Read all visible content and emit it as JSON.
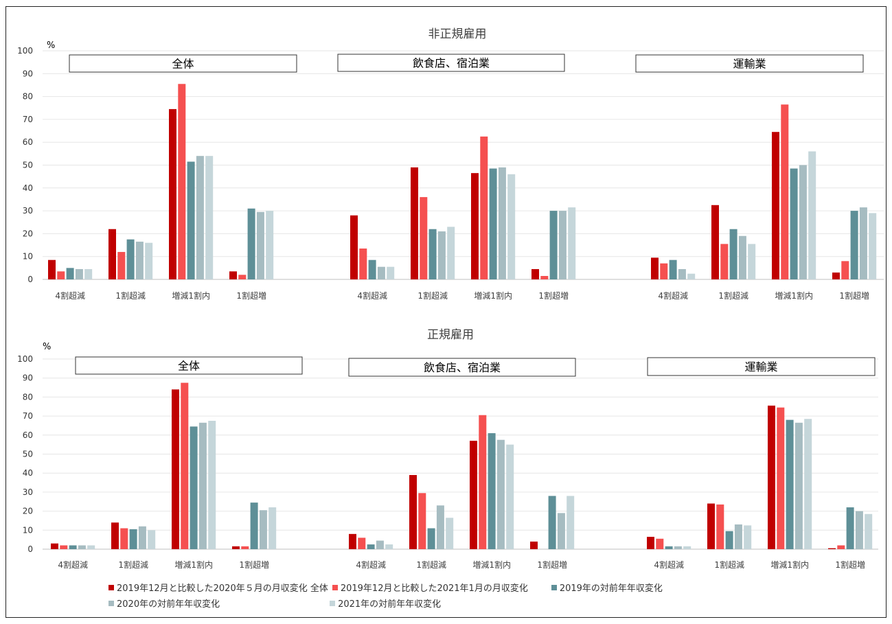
{
  "chart_data": [
    {
      "type": "bar",
      "title": "非正規雇用",
      "ylabel": "%",
      "ylim": [
        0,
        100
      ],
      "yticks": [
        0,
        10,
        20,
        30,
        40,
        50,
        60,
        70,
        80,
        90,
        100
      ],
      "categories": [
        "4割超減",
        "1割超減",
        "増減1割内",
        "1割超増"
      ],
      "groups": [
        {
          "label": "全体",
          "series_values": [
            [
              8.5,
              22,
              74.5,
              3.5
            ],
            [
              3.5,
              12,
              85.5,
              2
            ],
            [
              5,
              17.5,
              51.5,
              31
            ],
            [
              4.5,
              16.5,
              54,
              29.5
            ],
            [
              4.5,
              16,
              54,
              30
            ]
          ]
        },
        {
          "label": "飲食店、宿泊業",
          "series_values": [
            [
              28,
              49,
              46.5,
              4.5
            ],
            [
              13.5,
              36,
              62.5,
              1.5
            ],
            [
              8.5,
              22,
              48.5,
              30
            ],
            [
              5.5,
              21,
              49,
              30
            ],
            [
              5.5,
              23,
              46,
              31.5
            ]
          ]
        },
        {
          "label": "運輸業",
          "series_values": [
            [
              9.5,
              32.5,
              64.5,
              3
            ],
            [
              7,
              15.5,
              76.5,
              8
            ],
            [
              8.5,
              22,
              48.5,
              30
            ],
            [
              4.5,
              19,
              50,
              31.5
            ],
            [
              2.5,
              15.5,
              56,
              29
            ]
          ]
        }
      ]
    },
    {
      "type": "bar",
      "title": "正規雇用",
      "ylabel": "%",
      "ylim": [
        0,
        100
      ],
      "yticks": [
        0,
        10,
        20,
        30,
        40,
        50,
        60,
        70,
        80,
        90,
        100
      ],
      "categories": [
        "4割超減",
        "1割超減",
        "増減1割内",
        "1割超増"
      ],
      "groups": [
        {
          "label": "全体",
          "series_values": [
            [
              3,
              14,
              84,
              1.5
            ],
            [
              2,
              11,
              87.5,
              1.5
            ],
            [
              2,
              10.5,
              64.5,
              24.5
            ],
            [
              2,
              12,
              66.5,
              20.5
            ],
            [
              2,
              10,
              67.5,
              22
            ]
          ]
        },
        {
          "label": "飲食店、宿泊業",
          "series_values": [
            [
              8,
              39,
              57,
              4
            ],
            [
              6,
              29.5,
              70.5,
              0
            ],
            [
              2.5,
              11,
              61,
              28
            ],
            [
              4.5,
              23,
              57.5,
              19
            ],
            [
              2.5,
              16.5,
              55,
              28
            ]
          ]
        },
        {
          "label": "運輸業",
          "series_values": [
            [
              6.5,
              24,
              75.5,
              0.5
            ],
            [
              5.5,
              23.5,
              74.5,
              2
            ],
            [
              1.5,
              9.5,
              68,
              22
            ],
            [
              1.5,
              13,
              66.5,
              20
            ],
            [
              1.5,
              12.5,
              68.5,
              18.5
            ]
          ]
        }
      ]
    }
  ],
  "legend": [
    {
      "name": "2019年12月と比較した2020年５月の月収変化 全体",
      "color": "#C00000"
    },
    {
      "name": "2019年12月と比較した2021年1月の月収変化",
      "color": "#F55050"
    },
    {
      "name": "2019年の対前年年収変化",
      "color": "#5E8F97"
    },
    {
      "name": "2020年の対前年年収変化",
      "color": "#A6BCC1"
    },
    {
      "name": "2021年の対前年年収変化",
      "color": "#C5D6DA"
    }
  ]
}
